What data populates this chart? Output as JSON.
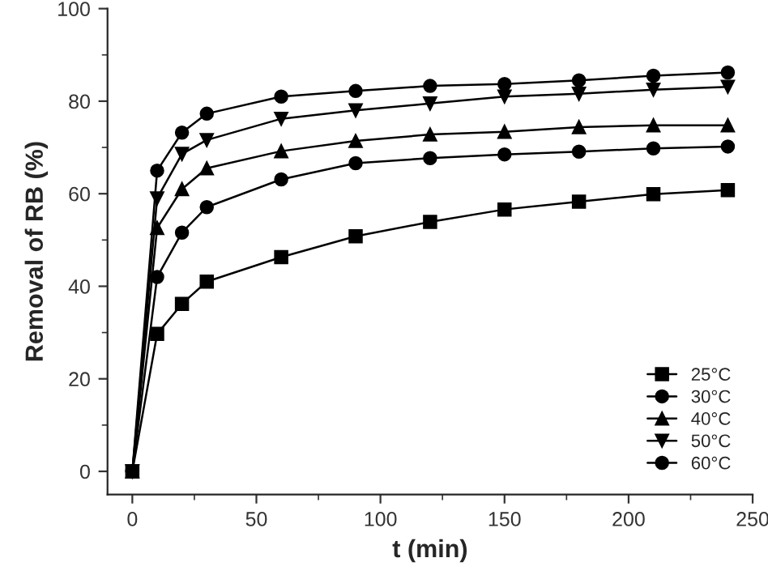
{
  "chart_data": {
    "type": "line",
    "xlabel": "t (min)",
    "ylabel": "Removal of RB (%)",
    "x": [
      0,
      10,
      20,
      30,
      60,
      90,
      120,
      150,
      180,
      210,
      240
    ],
    "series": [
      {
        "name": "25°C",
        "color": "#000000",
        "marker": "square",
        "values": [
          0,
          29.7,
          36.2,
          41,
          46.3,
          50.8,
          53.9,
          56.6,
          58.3,
          59.9,
          60.8
        ]
      },
      {
        "name": "30°C",
        "color": "#000000",
        "marker": "circle",
        "values": [
          0,
          42,
          51.6,
          57.1,
          63.1,
          66.6,
          67.7,
          68.5,
          69.1,
          69.8,
          70.2
        ]
      },
      {
        "name": "40°C",
        "color": "#000000",
        "marker": "triangle",
        "values": [
          0,
          52.6,
          61,
          65.5,
          69.2,
          71.4,
          72.8,
          73.4,
          74.4,
          74.8,
          74.8
        ]
      },
      {
        "name": "50°C",
        "color": "#000000",
        "marker": "triangle_down",
        "values": [
          0,
          59,
          68.6,
          71.6,
          76.2,
          78,
          79.5,
          81,
          81.6,
          82.5,
          83.1
        ]
      },
      {
        "name": "60°C",
        "color": "#000000",
        "marker": "circle",
        "values": [
          0,
          65,
          73.2,
          77.3,
          81,
          82.2,
          83.3,
          83.7,
          84.5,
          85.5,
          86.2
        ]
      }
    ],
    "xlim": [
      -10,
      250
    ],
    "xticks": [
      0,
      50,
      100,
      150,
      200,
      250
    ],
    "ylim": [
      -5,
      100
    ],
    "yticks": [
      0,
      20,
      40,
      60,
      80,
      100
    ],
    "grid": false,
    "legend": "bottom right",
    "line_style": "solid"
  }
}
